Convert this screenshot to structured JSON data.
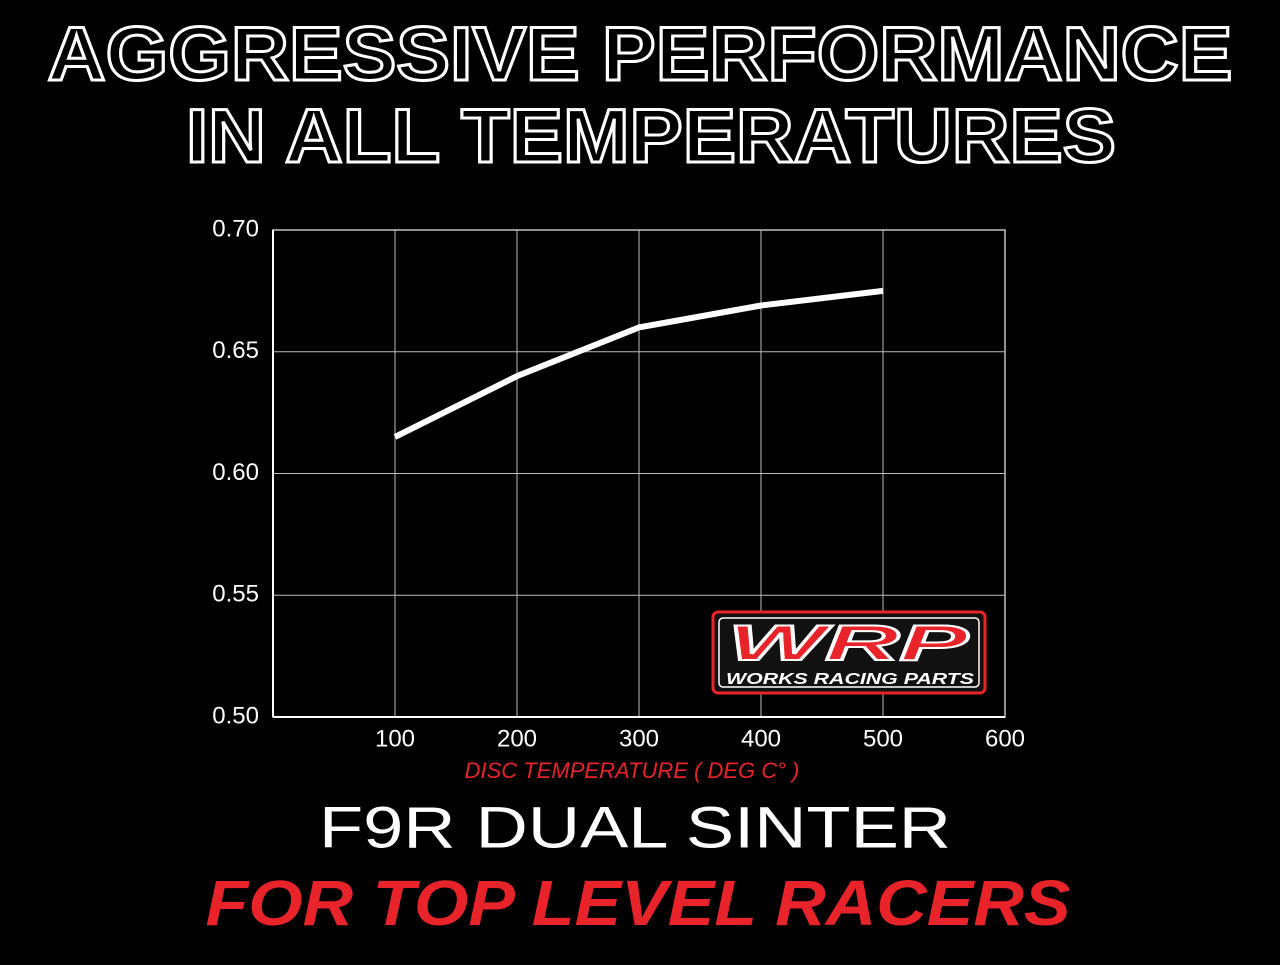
{
  "chart_data": {
    "type": "line",
    "title": [
      "AGGRESSIVE PERFORMANCE",
      "IN ALL TEMPERATURES"
    ],
    "subtitle": "F9R DUAL SINTER",
    "tagline": "FOR TOP LEVEL RACERS",
    "x_label": "DISC TEMPERATURE ( DEG C° )",
    "x": [
      100,
      200,
      300,
      400,
      500
    ],
    "series": [
      {
        "color": "#ffffff",
        "values": [
          0.615,
          0.64,
          0.66,
          0.669,
          0.675
        ]
      }
    ],
    "xlim": [
      0,
      600
    ],
    "xticks": [
      100,
      200,
      300,
      400,
      500,
      600
    ],
    "ylim": [
      0.5,
      0.7
    ],
    "yticks": [
      {
        "value": 0.5,
        "label": "0.50"
      },
      {
        "value": 0.55,
        "label": "0.55"
      },
      {
        "value": 0.6,
        "label": "0.60"
      },
      {
        "value": 0.65,
        "label": "0.65"
      },
      {
        "value": 0.7,
        "label": "0.70"
      }
    ],
    "grid": true
  },
  "logo": {
    "text": "WRP",
    "caption": "WORKS RACING PARTS"
  }
}
